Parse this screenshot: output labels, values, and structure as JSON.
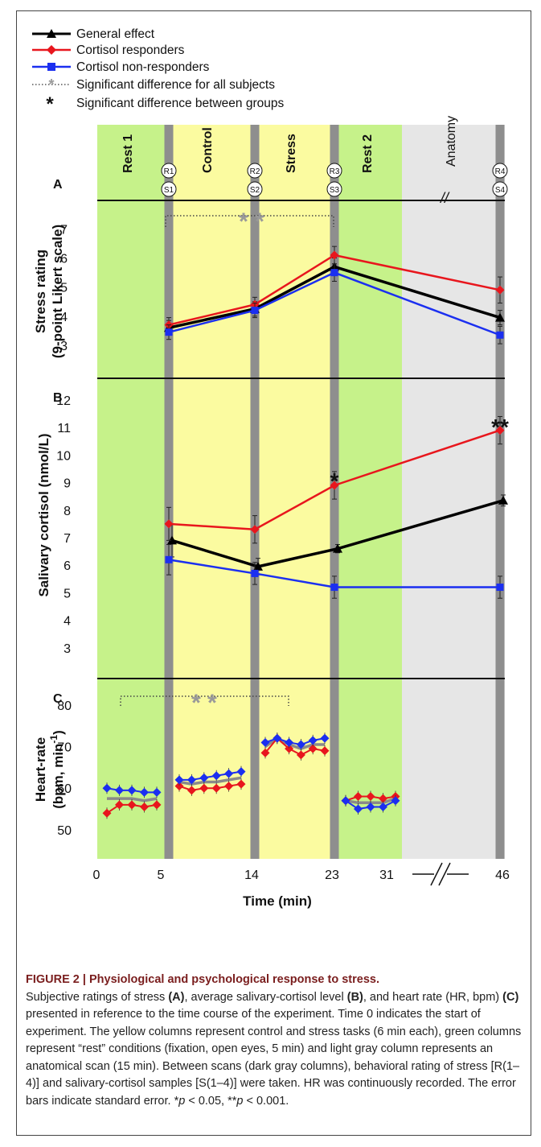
{
  "legend": {
    "items": [
      {
        "label": "General effect",
        "color": "#000000",
        "marker": "triangle",
        "style": "solid"
      },
      {
        "label": "Cortisol responders",
        "color": "#e8161d",
        "marker": "diamond",
        "style": "solid"
      },
      {
        "label": "Cortisol non-responders",
        "color": "#1b2ff0",
        "marker": "square",
        "style": "solid"
      },
      {
        "label": "Significant difference for all subjects",
        "color": "#999999",
        "marker": "star",
        "style": "dotted"
      },
      {
        "label": "Significant difference between groups",
        "color": "#000000",
        "marker": "asterisk",
        "style": "none"
      }
    ]
  },
  "phases": [
    {
      "label": "Rest 1",
      "color": "#c6f28a"
    },
    {
      "label": "Control",
      "color": "#fbfba0"
    },
    {
      "label": "Stress",
      "color": "#fbfba0"
    },
    {
      "label": "Rest 2",
      "color": "#c6f28a"
    },
    {
      "label": "Anatomy",
      "color": "#e6e6e6"
    }
  ],
  "scan_markers": [
    {
      "top": "R1",
      "bottom": "S1"
    },
    {
      "top": "R2",
      "bottom": "S2"
    },
    {
      "top": "R3",
      "bottom": "S3"
    },
    {
      "top": "R4",
      "bottom": "S4"
    }
  ],
  "axis_break_mark": "//",
  "chart_data": [
    {
      "type": "line",
      "panel": "A",
      "ylabel_line1": "Stress rating",
      "ylabel_line2": "(9-point Likert scale)",
      "yticks": [
        3,
        4,
        5,
        6,
        7
      ],
      "ylim": [
        2.0,
        7.9
      ],
      "x": [
        "S1",
        "S2",
        "S3",
        "S4"
      ],
      "series": [
        {
          "name": "General effect",
          "values": [
            3.6,
            4.25,
            5.7,
            3.95
          ],
          "errors": [
            0.25,
            0.25,
            0.3,
            0.25
          ]
        },
        {
          "name": "Cortisol responders",
          "values": [
            3.7,
            4.4,
            6.1,
            4.9
          ],
          "errors": [
            0.25,
            0.25,
            0.3,
            0.45
          ]
        },
        {
          "name": "Cortisol non-responders",
          "values": [
            3.45,
            4.2,
            5.5,
            3.35
          ],
          "errors": [
            0.25,
            0.25,
            0.3,
            0.3
          ]
        }
      ],
      "significance_all": "* *",
      "significance_groups": []
    },
    {
      "type": "line",
      "panel": "B",
      "ylabel": "Salivary cortisol (nmol/L)",
      "yticks": [
        3,
        4,
        5,
        6,
        7,
        8,
        9,
        10,
        11,
        12
      ],
      "ylim": [
        2.0,
        12.7
      ],
      "x": [
        "S1",
        "S2",
        "S3",
        "S4"
      ],
      "series": [
        {
          "name": "General effect",
          "values": [
            6.9,
            5.95,
            6.6,
            8.35
          ],
          "errors": [
            0.6,
            0.3,
            0.15,
            0.2
          ]
        },
        {
          "name": "Cortisol responders",
          "values": [
            7.5,
            7.3,
            8.9,
            10.9
          ],
          "errors": [
            0.6,
            0.5,
            0.5,
            0.5
          ]
        },
        {
          "name": "Cortisol non-responders",
          "values": [
            6.2,
            5.7,
            5.2,
            5.2
          ],
          "errors": [
            0.55,
            0.4,
            0.4,
            0.4
          ]
        }
      ],
      "significance_all": "",
      "significance_groups": [
        {
          "at": "S3",
          "label": "*"
        },
        {
          "at": "S4",
          "label": "**"
        }
      ]
    },
    {
      "type": "line",
      "panel": "C",
      "ylabel_line1": "Heart-rate",
      "ylabel_line2": "(bpm, min",
      "ylabel_sup": "-1",
      "ylabel_close": ")",
      "yticks": [
        50,
        60,
        70,
        80
      ],
      "ylim": [
        43,
        86
      ],
      "xlabel": "Time (min)",
      "xticks": [
        "0",
        "5",
        "14",
        "23",
        "31",
        "46"
      ],
      "blocks": [
        {
          "phase": "Rest 1",
          "responders": [
            54,
            56,
            56,
            55.5,
            56
          ],
          "non_responders": [
            60,
            59.5,
            59.5,
            59,
            59
          ],
          "general": [
            57.5,
            57.5,
            57.5,
            57,
            57.5
          ]
        },
        {
          "phase": "Control",
          "responders": [
            60.5,
            59.5,
            60,
            60,
            60.5,
            61
          ],
          "non_responders": [
            62,
            62,
            62.5,
            63,
            63.5,
            64
          ],
          "general": [
            61.5,
            61,
            61.5,
            61.5,
            62,
            62.5
          ]
        },
        {
          "phase": "Stress",
          "responders": [
            68.5,
            72,
            69.5,
            68,
            69.5,
            69
          ],
          "non_responders": [
            71,
            72,
            71,
            70.5,
            71.5,
            72
          ],
          "general": [
            70,
            72,
            70.5,
            69.5,
            70.5,
            70.5
          ]
        },
        {
          "phase": "Rest 2",
          "responders": [
            57,
            58,
            58,
            57.5,
            58
          ],
          "non_responders": [
            57,
            55,
            55.5,
            55.5,
            57
          ],
          "general": [
            57,
            56.5,
            56.5,
            56.5,
            57.5
          ]
        }
      ],
      "significance_all": "* *"
    }
  ],
  "caption": {
    "title": "FIGURE 2 | Physiological and psychological response to stress.",
    "body": [
      {
        "t": "Subjective ratings of stress "
      },
      {
        "t": "(A)",
        "b": true
      },
      {
        "t": ", average salivary-cortisol level "
      },
      {
        "t": "(B)",
        "b": true
      },
      {
        "t": ", and heart rate (HR, bpm) "
      },
      {
        "t": "(C)",
        "b": true
      },
      {
        "t": " presented in reference to the time course of the experiment. Time 0 indicates the start of experiment. The yellow columns represent control and stress tasks (6 min each), green columns represent “rest” conditions (fixation, open eyes, 5 min) and light gray column represents an anatomical scan (15 min). Between scans (dark gray columns), behavioral rating of stress [R(1–4)] and salivary-cortisol samples [S(1–4)] were taken. HR was continuously recorded. The error bars indicate standard error. *"
      },
      {
        "t": "p",
        "i": true
      },
      {
        "t": " < 0.05, **"
      },
      {
        "t": "p",
        "i": true
      },
      {
        "t": " < 0.001."
      }
    ]
  }
}
